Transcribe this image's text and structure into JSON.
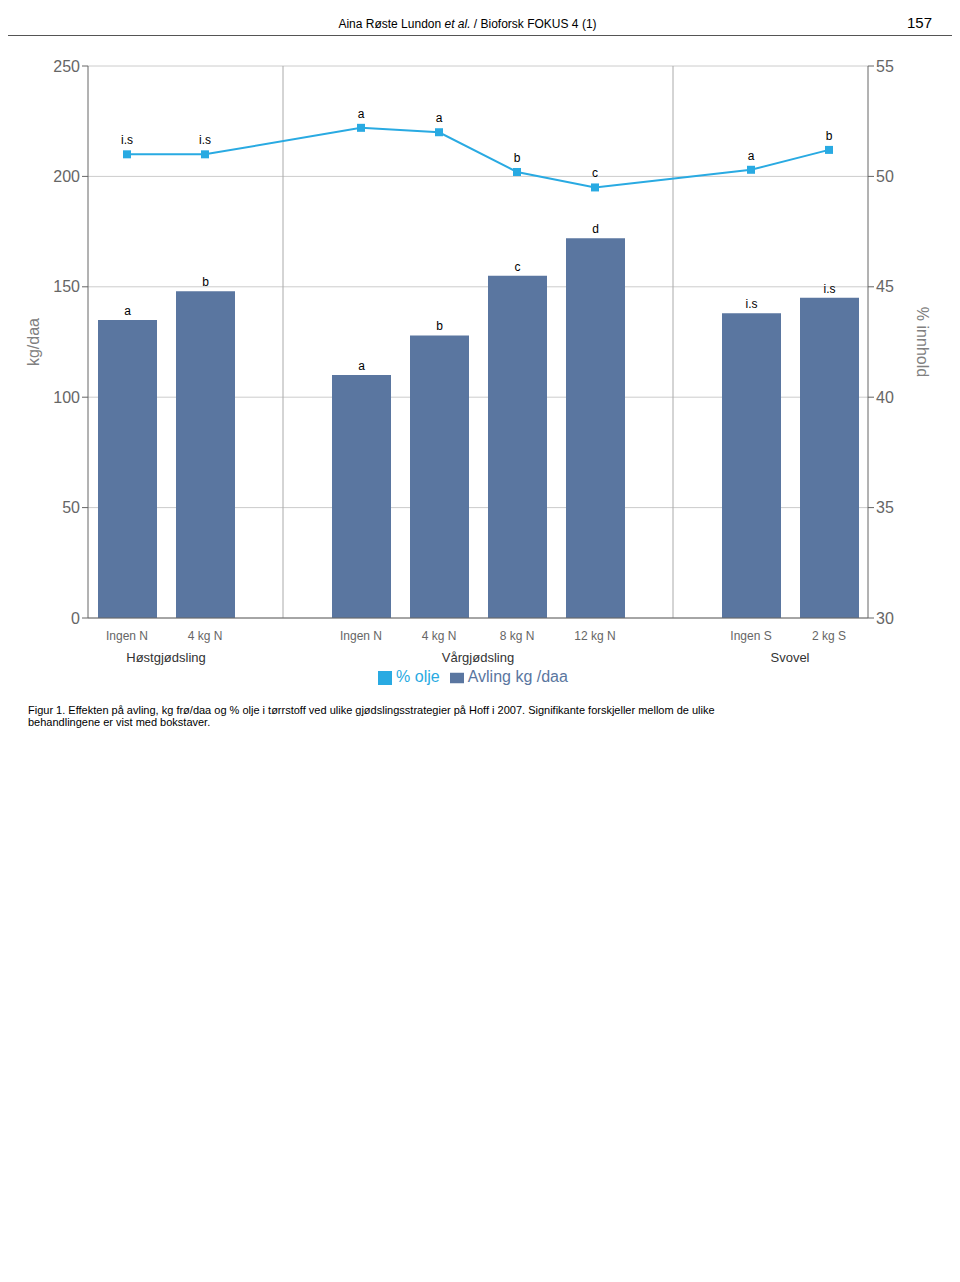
{
  "chart_data": {
    "type": "bar",
    "categories": [
      "Ingen N",
      "4 kg N",
      "Ingen N",
      "4 kg N",
      "8 kg N",
      "12 kg N",
      "Ingen S",
      "2 kg S"
    ],
    "groups": [
      {
        "name": "Høstgjødsling",
        "size": 2
      },
      {
        "name": "Vårgjødsling",
        "size": 4
      },
      {
        "name": "Svovel",
        "size": 2
      }
    ],
    "series": [
      {
        "name": "Avling kg /daa",
        "type": "bar",
        "color": "#5a76a0",
        "values": [
          135,
          148,
          110,
          128,
          155,
          172,
          138,
          145
        ],
        "annotations": [
          "a",
          "b",
          "a",
          "b",
          "c",
          "d",
          "i.s",
          "i.s"
        ]
      },
      {
        "name": "% olje",
        "type": "line",
        "axis": "y2",
        "color": "#29aae2",
        "marker": "square",
        "values": [
          51.0,
          51.0,
          52.2,
          52.0,
          50.2,
          49.5,
          50.3,
          51.2
        ],
        "annotations": [
          "i.s",
          "i.s",
          "a",
          "a",
          "b",
          "c",
          "a",
          "b"
        ]
      }
    ],
    "ylabel": "kg/daa",
    "y2label": "% innhold",
    "ylim": [
      0,
      250
    ],
    "yticks": [
      0,
      50,
      100,
      150,
      200,
      250
    ],
    "y2lim": [
      30,
      55
    ],
    "y2ticks": [
      30,
      35,
      40,
      45,
      50,
      55
    ],
    "grid": true,
    "legend": "bottom"
  },
  "header": {
    "text": "Aina Røste Lundon",
    "italic": "et al.",
    "rest": " / Bioforsk FOKUS 4 (1)",
    "page_number": "157"
  },
  "caption": [
    "Figur 1. Effekten på avling, kg frø/daa og % olje i tørrstoff ved ulike gjødslingsstrategier på Hoff i 2007. Signifikante forskjeller mellom de ulike",
    "behandlingene er vist med bokstaver."
  ]
}
